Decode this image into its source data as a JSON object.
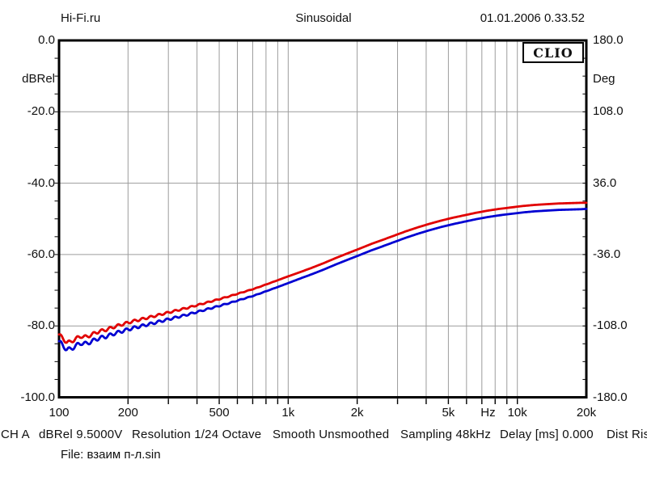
{
  "header": {
    "site": "Hi-Fi.ru",
    "title": "Sinusoidal",
    "datetime": "01.01.2006 0.33.52"
  },
  "branding": {
    "logo": "CLIO"
  },
  "status_bar": {
    "items": [
      "CH A",
      "dBRel 9.5000V",
      "Resolution 1/24 Octave",
      "Smooth Unsmoothed",
      "Sampling 48kHz",
      "Delay [ms] 0.000",
      "Dist Ris"
    ]
  },
  "file_line": "File: взаим п-л.sin",
  "colors": {
    "grid": "#9c9c9c",
    "frame": "#000000",
    "red_trace": "#e10000",
    "blue_trace": "#0000d2"
  },
  "chart_data": {
    "type": "line",
    "title": "Sinusoidal",
    "x_axis": {
      "scale": "log",
      "min": 100,
      "max": 20000,
      "unit": "Hz",
      "tick_labels": [
        {
          "f": 100,
          "label": "100"
        },
        {
          "f": 200,
          "label": "200"
        },
        {
          "f": 500,
          "label": "500"
        },
        {
          "f": 1000,
          "label": "1k"
        },
        {
          "f": 2000,
          "label": "2k"
        },
        {
          "f": 5000,
          "label": "5k"
        },
        {
          "f": 7450,
          "label": "Hz"
        },
        {
          "f": 10000,
          "label": "10k"
        },
        {
          "f": 20000,
          "label": "20k"
        }
      ],
      "gridlines": [
        200,
        300,
        400,
        500,
        600,
        700,
        800,
        900,
        1000,
        2000,
        3000,
        4000,
        5000,
        6000,
        7000,
        8000,
        9000,
        10000
      ]
    },
    "y_left": {
      "unit": "dBRel",
      "min": -100,
      "max": 0,
      "tick_labels": [
        {
          "v": 0,
          "label": "0.0"
        },
        {
          "v": -20,
          "label": "-20.0"
        },
        {
          "v": -40,
          "label": "-40.0"
        },
        {
          "v": -60,
          "label": "-60.0"
        },
        {
          "v": -80,
          "label": "-80.0"
        },
        {
          "v": -100,
          "label": "-100.0"
        }
      ],
      "gridlines": [
        -20,
        -40,
        -60,
        -80
      ],
      "minor_tick_step": 5
    },
    "y_right": {
      "unit": "Deg",
      "min": -180,
      "max": 180,
      "tick_labels": [
        {
          "v": 180,
          "label": "180.0"
        },
        {
          "v": 108,
          "label": "108.0"
        },
        {
          "v": 36,
          "label": "36.0"
        },
        {
          "v": -36,
          "label": "-36.0"
        },
        {
          "v": -108,
          "label": "-108.0"
        },
        {
          "v": -180,
          "label": "-180.0"
        }
      ],
      "minor_tick_step": 18
    },
    "ripple": {
      "period_octaves": 0.118,
      "fade_octaves": 3.2
    },
    "series": [
      {
        "name": "upper-red-response",
        "color": "#e10000",
        "ripple_amp_db": 0.5,
        "points": [
          [
            100,
            -82.4
          ],
          [
            104,
            -83.6
          ],
          [
            108,
            -84.5
          ],
          [
            112,
            -84.6
          ],
          [
            118,
            -83.6
          ],
          [
            125,
            -82.9
          ],
          [
            132,
            -83.1
          ],
          [
            140,
            -82.3
          ],
          [
            150,
            -81.5
          ],
          [
            160,
            -81.1
          ],
          [
            175,
            -80.2
          ],
          [
            190,
            -79.5
          ],
          [
            210,
            -78.7
          ],
          [
            230,
            -78.1
          ],
          [
            255,
            -77.4
          ],
          [
            285,
            -76.6
          ],
          [
            320,
            -75.8
          ],
          [
            360,
            -75.0
          ],
          [
            400,
            -74.2
          ],
          [
            450,
            -73.3
          ],
          [
            500,
            -72.5
          ],
          [
            560,
            -71.6
          ],
          [
            630,
            -70.6
          ],
          [
            710,
            -69.6
          ],
          [
            800,
            -68.4
          ],
          [
            900,
            -67.2
          ],
          [
            1000,
            -66.1
          ],
          [
            1130,
            -64.9
          ],
          [
            1270,
            -63.7
          ],
          [
            1430,
            -62.4
          ],
          [
            1610,
            -61.0
          ],
          [
            1810,
            -59.7
          ],
          [
            2040,
            -58.4
          ],
          [
            2290,
            -57.1
          ],
          [
            2580,
            -55.9
          ],
          [
            2900,
            -54.7
          ],
          [
            3260,
            -53.5
          ],
          [
            3670,
            -52.4
          ],
          [
            4130,
            -51.4
          ],
          [
            4640,
            -50.5
          ],
          [
            5220,
            -49.7
          ],
          [
            5870,
            -49.0
          ],
          [
            6600,
            -48.3
          ],
          [
            7420,
            -47.7
          ],
          [
            8350,
            -47.2
          ],
          [
            9390,
            -46.8
          ],
          [
            10560,
            -46.4
          ],
          [
            11870,
            -46.1
          ],
          [
            13350,
            -45.9
          ],
          [
            15010,
            -45.7
          ],
          [
            16880,
            -45.6
          ],
          [
            18980,
            -45.5
          ],
          [
            20000,
            -45.5
          ]
        ]
      },
      {
        "name": "lower-blue-response",
        "color": "#0000d2",
        "ripple_amp_db": 0.6,
        "points": [
          [
            100,
            -84.3
          ],
          [
            104,
            -85.6
          ],
          [
            108,
            -86.5
          ],
          [
            112,
            -86.6
          ],
          [
            118,
            -85.6
          ],
          [
            125,
            -84.8
          ],
          [
            132,
            -85.0
          ],
          [
            140,
            -84.2
          ],
          [
            150,
            -83.4
          ],
          [
            160,
            -83.0
          ],
          [
            175,
            -82.1
          ],
          [
            190,
            -81.4
          ],
          [
            210,
            -80.6
          ],
          [
            230,
            -80.0
          ],
          [
            255,
            -79.3
          ],
          [
            285,
            -78.5
          ],
          [
            320,
            -77.7
          ],
          [
            360,
            -76.9
          ],
          [
            400,
            -76.1
          ],
          [
            450,
            -75.2
          ],
          [
            500,
            -74.4
          ],
          [
            560,
            -73.5
          ],
          [
            630,
            -72.5
          ],
          [
            710,
            -71.5
          ],
          [
            800,
            -70.3
          ],
          [
            900,
            -69.1
          ],
          [
            1000,
            -68.0
          ],
          [
            1130,
            -66.7
          ],
          [
            1270,
            -65.5
          ],
          [
            1430,
            -64.2
          ],
          [
            1610,
            -62.8
          ],
          [
            1810,
            -61.5
          ],
          [
            2040,
            -60.2
          ],
          [
            2290,
            -58.9
          ],
          [
            2580,
            -57.7
          ],
          [
            2900,
            -56.5
          ],
          [
            3260,
            -55.3
          ],
          [
            3670,
            -54.2
          ],
          [
            4130,
            -53.2
          ],
          [
            4640,
            -52.3
          ],
          [
            5220,
            -51.5
          ],
          [
            5870,
            -50.8
          ],
          [
            6600,
            -50.1
          ],
          [
            7420,
            -49.5
          ],
          [
            8350,
            -49.0
          ],
          [
            9390,
            -48.6
          ],
          [
            10560,
            -48.2
          ],
          [
            11870,
            -47.9
          ],
          [
            13350,
            -47.7
          ],
          [
            15010,
            -47.5
          ],
          [
            16880,
            -47.4
          ],
          [
            18980,
            -47.3
          ],
          [
            20000,
            -47.2
          ]
        ]
      }
    ]
  }
}
